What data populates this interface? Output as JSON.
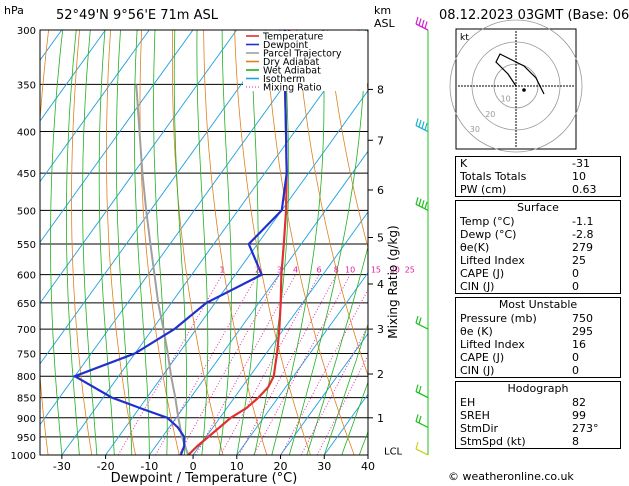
{
  "header": {
    "location": "52°49'N  9°56'E  71m  ASL",
    "datetime": "08.12.2023  03GMT  (Base: 06)",
    "hpa_label": "hPa",
    "km_label": "km",
    "asl_label": "ASL"
  },
  "colors": {
    "temperature": "#e03030",
    "dewpoint": "#2030d0",
    "parcel": "#a0a0a0",
    "dry_adiabat": "#e08020",
    "wet_adiabat": "#20b020",
    "isotherm": "#20a0e0",
    "mixing_ratio": "#e020a0"
  },
  "legend": [
    {
      "label": "Temperature",
      "color": "#e03030",
      "style": "solid"
    },
    {
      "label": "Dewpoint",
      "color": "#2030d0",
      "style": "solid"
    },
    {
      "label": "Parcel Trajectory",
      "color": "#a0a0a0",
      "style": "solid"
    },
    {
      "label": "Dry Adiabat",
      "color": "#e08020",
      "style": "solid"
    },
    {
      "label": "Wet Adiabat",
      "color": "#20b020",
      "style": "solid"
    },
    {
      "label": "Isotherm",
      "color": "#20a0e0",
      "style": "solid"
    },
    {
      "label": "Mixing Ratio",
      "color": "#e020a0",
      "style": "dotted"
    }
  ],
  "chart_data": {
    "type": "line",
    "subtype": "skew-T log-P",
    "xlabel": "Dewpoint / Temperature (°C)",
    "ylabel_right": "Mixing Ratio (g/kg)",
    "x_ticks": [
      -30,
      -20,
      -10,
      0,
      10,
      20,
      30,
      40
    ],
    "xlim": [
      -35,
      40
    ],
    "pressure_ticks": [
      300,
      350,
      400,
      450,
      500,
      550,
      600,
      650,
      700,
      750,
      800,
      850,
      900,
      950,
      1000
    ],
    "ylim": [
      1000,
      300
    ],
    "y_scale": "log",
    "km_ticks": [
      {
        "km": "1",
        "p": 900
      },
      {
        "km": "2",
        "p": 795
      },
      {
        "km": "3",
        "p": 700
      },
      {
        "km": "4",
        "p": 616
      },
      {
        "km": "5",
        "p": 540
      },
      {
        "km": "6",
        "p": 472
      },
      {
        "km": "7",
        "p": 410
      },
      {
        "km": "8",
        "p": 355
      }
    ],
    "lcl": {
      "label": "LCL",
      "p": 990
    },
    "mixing_ratio_labels": [
      "1",
      "2",
      "3",
      "4",
      "6",
      "8",
      "10",
      "15",
      "20",
      "25"
    ],
    "series": [
      {
        "name": "Temperature",
        "points": [
          {
            "p": 1000,
            "t": -1.1
          },
          {
            "p": 975,
            "t": -0.5
          },
          {
            "p": 950,
            "t": 0.5
          },
          {
            "p": 925,
            "t": 1.5
          },
          {
            "p": 900,
            "t": 2.5
          },
          {
            "p": 875,
            "t": 4.5
          },
          {
            "p": 850,
            "t": 5.5
          },
          {
            "p": 825,
            "t": 6.0
          },
          {
            "p": 800,
            "t": 5.5
          },
          {
            "p": 775,
            "t": 4.0
          },
          {
            "p": 750,
            "t": 2.5
          },
          {
            "p": 700,
            "t": -1.0
          },
          {
            "p": 650,
            "t": -5.0
          },
          {
            "p": 600,
            "t": -9.5
          },
          {
            "p": 550,
            "t": -14.0
          },
          {
            "p": 500,
            "t": -19.0
          },
          {
            "p": 450,
            "t": -25.0
          },
          {
            "p": 400,
            "t": -32.0
          },
          {
            "p": 350,
            "t": -40.0
          },
          {
            "p": 300,
            "t": -48.0
          }
        ]
      },
      {
        "name": "Dewpoint",
        "points": [
          {
            "p": 1000,
            "t": -2.8
          },
          {
            "p": 975,
            "t": -3.5
          },
          {
            "p": 950,
            "t": -5.0
          },
          {
            "p": 925,
            "t": -8.0
          },
          {
            "p": 900,
            "t": -12.0
          },
          {
            "p": 875,
            "t": -20.0
          },
          {
            "p": 850,
            "t": -28.0
          },
          {
            "p": 800,
            "t": -40.0
          },
          {
            "p": 750,
            "t": -30.0
          },
          {
            "p": 700,
            "t": -25.0
          },
          {
            "p": 650,
            "t": -22.0
          },
          {
            "p": 600,
            "t": -14.0
          },
          {
            "p": 550,
            "t": -22.0
          },
          {
            "p": 500,
            "t": -20.0
          },
          {
            "p": 450,
            "t": -25.0
          },
          {
            "p": 400,
            "t": -32.0
          },
          {
            "p": 350,
            "t": -40.0
          },
          {
            "p": 300,
            "t": -49.0
          }
        ]
      },
      {
        "name": "Parcel Trajectory",
        "points": [
          {
            "p": 1000,
            "t": -1.1
          },
          {
            "p": 990,
            "t": -2.0
          },
          {
            "p": 950,
            "t": -5.5
          },
          {
            "p": 900,
            "t": -9.5
          },
          {
            "p": 850,
            "t": -13.5
          },
          {
            "p": 800,
            "t": -18.0
          },
          {
            "p": 750,
            "t": -22.5
          },
          {
            "p": 700,
            "t": -27.5
          },
          {
            "p": 650,
            "t": -33.0
          },
          {
            "p": 600,
            "t": -38.5
          },
          {
            "p": 550,
            "t": -44.5
          },
          {
            "p": 500,
            "t": -51.0
          },
          {
            "p": 450,
            "t": -58.0
          },
          {
            "p": 400,
            "t": -65.5
          },
          {
            "p": 350,
            "t": -74.0
          }
        ]
      }
    ],
    "hodograph": {
      "unit_label": "kt",
      "ring_labels": [
        "10",
        "20",
        "30"
      ],
      "trace_u": [
        0,
        -2,
        -5,
        -4,
        -2,
        2,
        5,
        7
      ],
      "trace_v": [
        0,
        3,
        6,
        8,
        7,
        5,
        2,
        -2
      ],
      "storm_motion": {
        "u": 2,
        "v": -1
      }
    },
    "wind_barbs": [
      {
        "p": 300,
        "dir": 260,
        "spd": 60
      },
      {
        "p": 400,
        "dir": 265,
        "spd": 50
      },
      {
        "p": 500,
        "dir": 270,
        "spd": 35
      },
      {
        "p": 700,
        "dir": 275,
        "spd": 20
      },
      {
        "p": 850,
        "dir": 280,
        "spd": 15
      },
      {
        "p": 925,
        "dir": 280,
        "spd": 15
      },
      {
        "p": 1000,
        "dir": 250,
        "spd": 10
      }
    ]
  },
  "indices": {
    "rows": [
      {
        "k": "K",
        "v": "-31"
      },
      {
        "k": "Totals Totals",
        "v": "10"
      },
      {
        "k": "PW (cm)",
        "v": "0.63"
      }
    ]
  },
  "surface": {
    "title": "Surface",
    "rows": [
      {
        "k": "Temp (°C)",
        "v": "-1.1"
      },
      {
        "k": "Dewp (°C)",
        "v": "-2.8"
      },
      {
        "k": "θe(K)",
        "v": "279"
      },
      {
        "k": "Lifted Index",
        "v": "25"
      },
      {
        "k": "CAPE (J)",
        "v": "0"
      },
      {
        "k": "CIN (J)",
        "v": "0"
      }
    ]
  },
  "most_unstable": {
    "title": "Most Unstable",
    "rows": [
      {
        "k": "Pressure (mb)",
        "v": "750"
      },
      {
        "k": "θe (K)",
        "v": "295"
      },
      {
        "k": "Lifted Index",
        "v": "16"
      },
      {
        "k": "CAPE (J)",
        "v": "0"
      },
      {
        "k": "CIN (J)",
        "v": "0"
      }
    ]
  },
  "hodograph_box": {
    "title": "Hodograph",
    "rows": [
      {
        "k": "EH",
        "v": "82"
      },
      {
        "k": "SREH",
        "v": "99"
      },
      {
        "k": "StmDir",
        "v": "273°"
      },
      {
        "k": "StmSpd (kt)",
        "v": "8"
      }
    ]
  },
  "credit": "© weatheronline.co.uk"
}
